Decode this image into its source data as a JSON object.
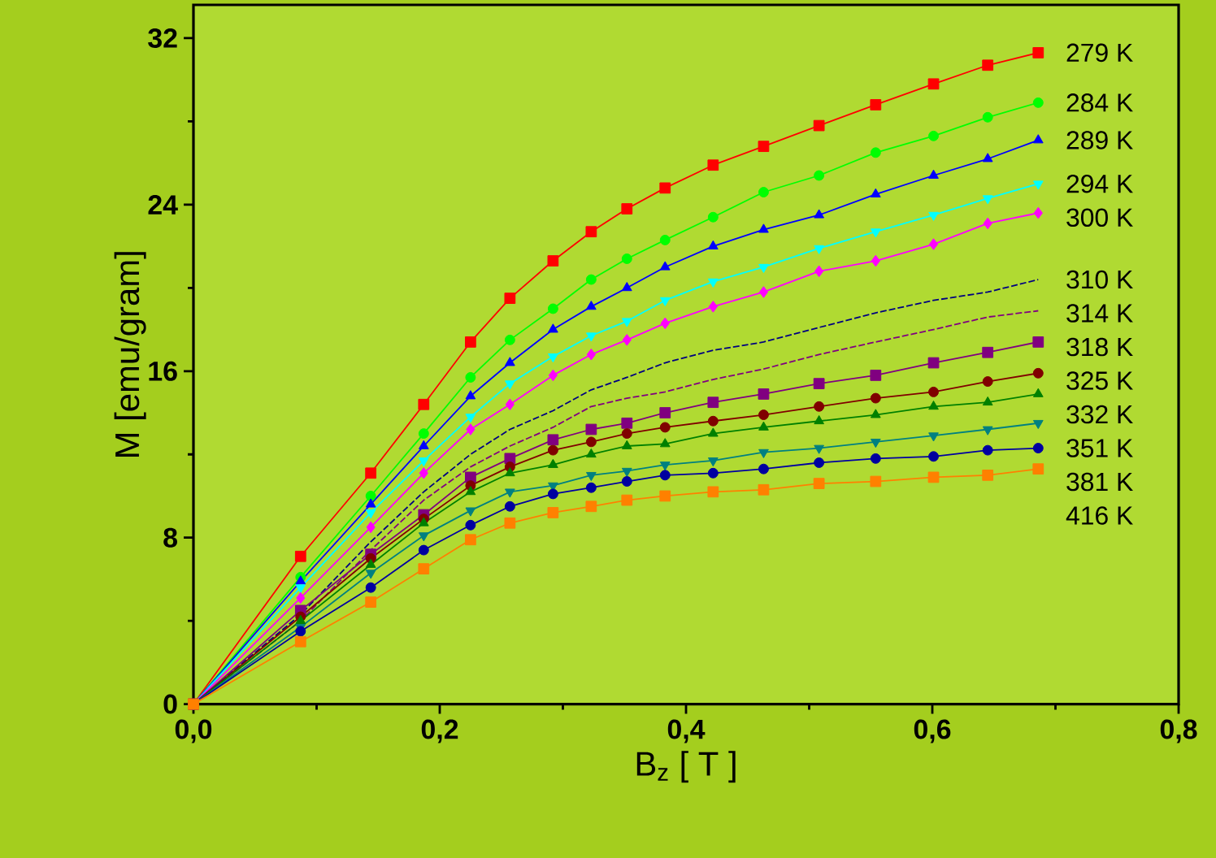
{
  "chart_data": {
    "type": "line",
    "xlabel": "B$_{z}$ [ T ]",
    "ylabel": "M [emu/gram]",
    "x": [
      0,
      0.087,
      0.144,
      0.187,
      0.225,
      0.257,
      0.292,
      0.323,
      0.352,
      0.383,
      0.422,
      0.463,
      0.508,
      0.554,
      0.601,
      0.645,
      0.686
    ],
    "xlim": [
      0,
      0.8
    ],
    "ylim": [
      0,
      33.6
    ],
    "xticks": [
      {
        "value": 0,
        "label": "0,0"
      },
      {
        "value": 0.2,
        "label": "0,2"
      },
      {
        "value": 0.4,
        "label": "0,4"
      },
      {
        "value": 0.6,
        "label": "0,6"
      },
      {
        "value": 0.8,
        "label": "0,8"
      }
    ],
    "yticks": [
      0,
      8,
      16,
      24,
      32
    ],
    "grid": false,
    "legend": false,
    "series": [
      {
        "name": "279 K",
        "color": "#ff0000",
        "marker": "square",
        "line_style": "solid",
        "values": [
          0,
          7.1,
          11.1,
          14.4,
          17.4,
          19.5,
          21.3,
          22.7,
          23.8,
          24.8,
          25.9,
          26.8,
          27.8,
          28.8,
          29.8,
          30.7,
          31.3
        ]
      },
      {
        "name": "284 K",
        "color": "#00ff00",
        "marker": "circle",
        "line_style": "solid",
        "values": [
          0,
          6.1,
          10.0,
          13.0,
          15.7,
          17.5,
          19.0,
          20.4,
          21.4,
          22.3,
          23.4,
          24.6,
          25.4,
          26.5,
          27.3,
          28.2,
          28.9
        ]
      },
      {
        "name": "289 K",
        "color": "#0000ff",
        "marker": "triangle",
        "line_style": "solid",
        "values": [
          0,
          5.9,
          9.6,
          12.4,
          14.8,
          16.4,
          18.0,
          19.1,
          20.0,
          21.0,
          22.0,
          22.8,
          23.5,
          24.5,
          25.4,
          26.2,
          27.1
        ]
      },
      {
        "name": "294 K",
        "color": "#00ffff",
        "marker": "triangle-down",
        "line_style": "solid",
        "values": [
          0,
          5.6,
          9.2,
          11.7,
          13.8,
          15.4,
          16.7,
          17.7,
          18.4,
          19.4,
          20.3,
          21.0,
          21.9,
          22.7,
          23.5,
          24.3,
          25.0
        ]
      },
      {
        "name": "300 K",
        "color": "#ff00ff",
        "marker": "diamond",
        "line_style": "solid",
        "values": [
          0,
          5.1,
          8.5,
          11.1,
          13.2,
          14.4,
          15.8,
          16.8,
          17.5,
          18.3,
          19.1,
          19.8,
          20.8,
          21.3,
          22.1,
          23.1,
          23.6
        ]
      },
      {
        "name": "310 K",
        "color": "#000080",
        "marker": "none",
        "line_style": "dashed",
        "values": [
          0,
          4.3,
          7.8,
          10.2,
          12.0,
          13.2,
          14.1,
          15.1,
          15.7,
          16.4,
          17.0,
          17.4,
          18.1,
          18.8,
          19.4,
          19.8,
          20.4
        ]
      },
      {
        "name": "314 K",
        "color": "#800080",
        "marker": "none",
        "line_style": "dashed",
        "values": [
          0,
          4.0,
          7.4,
          9.8,
          11.4,
          12.4,
          13.3,
          14.3,
          14.7,
          15.0,
          15.6,
          16.1,
          16.8,
          17.4,
          18.0,
          18.6,
          18.9
        ]
      },
      {
        "name": "318 K",
        "color": "#800080",
        "marker": "square",
        "line_style": "solid",
        "values": [
          0,
          4.5,
          7.2,
          9.1,
          10.9,
          11.8,
          12.7,
          13.2,
          13.5,
          14.0,
          14.5,
          14.9,
          15.4,
          15.8,
          16.4,
          16.9,
          17.4
        ]
      },
      {
        "name": "325 K",
        "color": "#800000",
        "marker": "circle",
        "line_style": "solid",
        "values": [
          0,
          4.2,
          7.0,
          8.9,
          10.5,
          11.4,
          12.2,
          12.6,
          13.0,
          13.3,
          13.6,
          13.9,
          14.3,
          14.7,
          15.0,
          15.5,
          15.9
        ]
      },
      {
        "name": "332 K",
        "color": "#008000",
        "marker": "triangle",
        "line_style": "solid",
        "values": [
          0,
          4.0,
          6.7,
          8.7,
          10.2,
          11.1,
          11.5,
          12.0,
          12.4,
          12.5,
          13.0,
          13.3,
          13.6,
          13.9,
          14.3,
          14.5,
          14.9
        ]
      },
      {
        "name": "351 K",
        "color": "#008080",
        "marker": "triangle-down",
        "line_style": "solid",
        "values": [
          0,
          3.7,
          6.3,
          8.1,
          9.3,
          10.2,
          10.5,
          11.0,
          11.2,
          11.5,
          11.7,
          12.1,
          12.3,
          12.6,
          12.9,
          13.2,
          13.5
        ]
      },
      {
        "name": "381 K",
        "color": "#0000a0",
        "marker": "circle",
        "line_style": "solid",
        "values": [
          0,
          3.5,
          5.6,
          7.4,
          8.6,
          9.5,
          10.1,
          10.4,
          10.7,
          11.0,
          11.1,
          11.3,
          11.6,
          11.8,
          11.9,
          12.2,
          12.3
        ]
      },
      {
        "name": "416 K",
        "color": "#ff8000",
        "marker": "square",
        "line_style": "solid",
        "values": [
          0,
          3.0,
          4.9,
          6.5,
          7.9,
          8.7,
          9.2,
          9.5,
          9.8,
          10.0,
          10.2,
          10.3,
          10.6,
          10.7,
          10.9,
          11.0,
          11.3
        ]
      }
    ]
  }
}
